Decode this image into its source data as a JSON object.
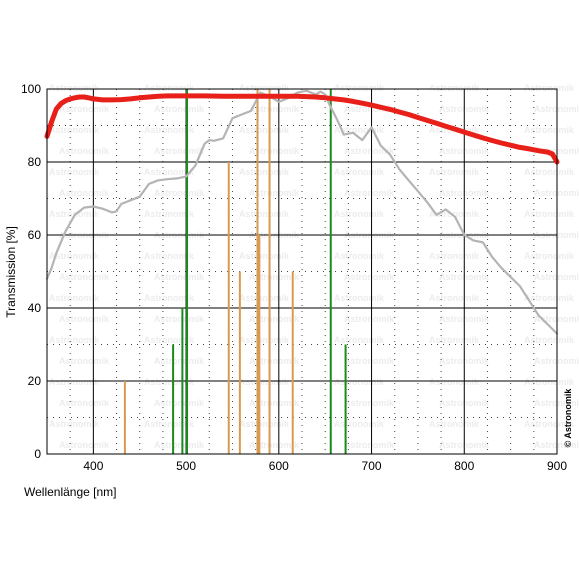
{
  "chart_data": {
    "type": "line",
    "title": "",
    "xlabel": "Wellenlänge [nm]",
    "ylabel": "Transmission [%]",
    "xlim": [
      350,
      900
    ],
    "ylim": [
      0,
      100
    ],
    "xticks": [
      400,
      500,
      600,
      700,
      800,
      900
    ],
    "yticks": [
      0,
      20,
      40,
      60,
      80,
      100
    ],
    "grid": true,
    "watermark": "Astronomik",
    "credit": "© Astronomik",
    "series": [
      {
        "color": "#e8201a",
        "style": "thick",
        "x": [
          350,
          355,
          360,
          365,
          370,
          375,
          380,
          385,
          390,
          395,
          400,
          410,
          420,
          430,
          440,
          450,
          460,
          470,
          480,
          490,
          500,
          520,
          540,
          560,
          580,
          600,
          620,
          640,
          650,
          660,
          670,
          680,
          690,
          700,
          710,
          720,
          730,
          740,
          750,
          760,
          770,
          780,
          790,
          800,
          810,
          820,
          830,
          840,
          850,
          860,
          870,
          880,
          890,
          895,
          900
        ],
        "y": [
          87,
          91,
          94.5,
          96,
          96.8,
          97.3,
          97.6,
          97.8,
          97.8,
          97.6,
          97.3,
          97,
          97,
          97.1,
          97.3,
          97.6,
          97.8,
          98,
          98.1,
          98.1,
          98.1,
          98.1,
          98,
          98,
          98,
          98,
          98,
          97.8,
          97.6,
          97.3,
          97,
          96.6,
          96.1,
          95.6,
          95,
          94.4,
          93.7,
          93,
          92.2,
          91.4,
          90.6,
          89.8,
          89,
          88.2,
          87.4,
          86.6,
          85.9,
          85.2,
          84.6,
          84,
          83.6,
          83.1,
          82.7,
          82.2,
          80
        ]
      },
      {
        "color": "#b4b4b4",
        "style": "thin",
        "x": [
          350,
          355,
          360,
          370,
          380,
          390,
          400,
          410,
          420,
          425,
          430,
          440,
          450,
          460,
          470,
          480,
          490,
          500,
          510,
          520,
          525,
          530,
          540,
          550,
          560,
          570,
          580,
          590,
          600,
          610,
          620,
          630,
          640,
          645,
          650,
          655,
          660,
          665,
          670,
          680,
          690,
          700,
          710,
          720,
          730,
          740,
          750,
          760,
          770,
          780,
          790,
          800,
          810,
          820,
          830,
          840,
          850,
          860,
          870,
          880,
          890,
          900
        ],
        "y": [
          48,
          51,
          55,
          61,
          65.5,
          67.5,
          67.8,
          67.2,
          66.2,
          66.5,
          68.5,
          69.5,
          70.5,
          74,
          75,
          75.3,
          75.5,
          76,
          79,
          85,
          86,
          85.8,
          86.5,
          92,
          93,
          94,
          99,
          98,
          96.5,
          97.5,
          99,
          99.5,
          98.5,
          99.3,
          98.5,
          95.5,
          93,
          90.5,
          87.5,
          88,
          86,
          89.5,
          84.5,
          82,
          78,
          75,
          72,
          69,
          65.5,
          67,
          65,
          60,
          58.5,
          58,
          54,
          51,
          48.5,
          46,
          42,
          38,
          35.5,
          33
        ]
      }
    ],
    "lines": [
      {
        "x": 434,
        "y": 20,
        "color": "#d89a50"
      },
      {
        "x": 486,
        "y": 30,
        "color": "#1a8a1a"
      },
      {
        "x": 496,
        "y": 40,
        "color": "#1a8a1a"
      },
      {
        "x": 501,
        "y": 100,
        "color": "#1a8a1a"
      },
      {
        "x": 546,
        "y": 80,
        "color": "#d89a50"
      },
      {
        "x": 558,
        "y": 50,
        "color": "#d89a50"
      },
      {
        "x": 577,
        "y": 100,
        "color": "#d89a50"
      },
      {
        "x": 579,
        "y": 60,
        "color": "#d89a50"
      },
      {
        "x": 590,
        "y": 100,
        "color": "#d89a50"
      },
      {
        "x": 615,
        "y": 50,
        "color": "#d89a50"
      },
      {
        "x": 656,
        "y": 100,
        "color": "#1a8a1a"
      },
      {
        "x": 672,
        "y": 30,
        "color": "#1a8a1a"
      }
    ]
  }
}
